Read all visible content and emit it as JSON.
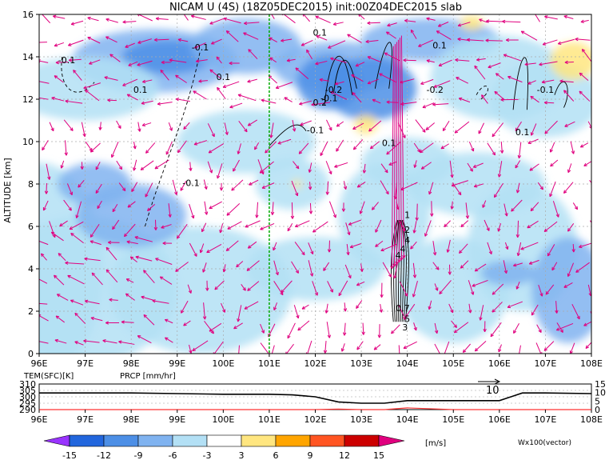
{
  "chart_data": [
    {
      "type": "heatmap",
      "title": "NICAM U (4S) (18Z05DEC2015) init:00Z04DEC2015 slab",
      "ylabel": "ALTITUDE [km]",
      "xlim": [
        96,
        108
      ],
      "ylim": [
        0,
        16
      ],
      "x_ticks": [
        "96E",
        "97E",
        "98E",
        "99E",
        "100E",
        "101E",
        "102E",
        "103E",
        "104E",
        "105E",
        "106E",
        "107E",
        "108E"
      ],
      "y_ticks": [
        "0",
        "2",
        "4",
        "6",
        "8",
        "10",
        "12",
        "14",
        "16"
      ],
      "grid": true,
      "reference_line_x": 101,
      "reference_line_color": "#00aa00",
      "vector_color": "#e0007f",
      "vector_label": "Wx100(vector)",
      "contour_labels": [
        "-0.1",
        "-0.1",
        "0.1",
        "0.1",
        "0.1",
        "-0.1",
        "0.2",
        "-0.2",
        "-0.1",
        "0.1",
        "0.1",
        "-0.1",
        "0.1",
        "-0.1",
        "-0.2",
        "1",
        "2",
        "4",
        "4",
        "4",
        "0.7",
        "5",
        "3"
      ],
      "colorbar": {
        "levels": [
          "-15",
          "-12",
          "-9",
          "-6",
          "-3",
          "3",
          "6",
          "9",
          "12",
          "15"
        ],
        "colors": [
          "#9933ff",
          "#2266dd",
          "#4d8fe6",
          "#80b3f0",
          "#b3e0f5",
          "#ffffff",
          "#ffe680",
          "#ffa500",
          "#ff5522",
          "#cc0000",
          "#e0007f"
        ],
        "unit": "[m/s]"
      }
    },
    {
      "type": "line",
      "legend": [
        "TEM(SFC)[K]",
        "PRCP [mm/hr]"
      ],
      "x": [
        96,
        97,
        98,
        99,
        100,
        101,
        101.5,
        102,
        102.5,
        103,
        103.5,
        104,
        104.5,
        105,
        105.5,
        106,
        106.5,
        107,
        108
      ],
      "series": [
        {
          "name": "TEM(SFC)[K]",
          "color": "#000000",
          "values": [
            303,
            303,
            303,
            302.5,
            302,
            302,
            301.5,
            300,
            296,
            295,
            295,
            297,
            297,
            297,
            297,
            297,
            303,
            303,
            302.5
          ]
        },
        {
          "name": "PRCP [mm/hr]",
          "color": "#ff3333",
          "values": [
            0,
            0,
            0,
            0,
            0,
            0,
            0,
            0,
            0.3,
            0,
            0,
            1,
            0.5,
            0,
            0,
            0,
            0,
            0,
            0
          ]
        }
      ],
      "y_left_ticks": [
        "290",
        "295",
        "300",
        "305",
        "310"
      ],
      "y_right_ticks": [
        "0",
        "5",
        "10",
        "15"
      ],
      "annotation": "10"
    }
  ]
}
